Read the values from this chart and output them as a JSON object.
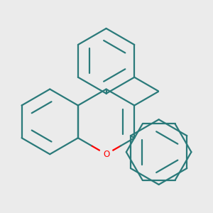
{
  "background_color": "#ebebeb",
  "bond_color": "#2a7a7a",
  "oxygen_color": "#ff0000",
  "line_width": 1.6,
  "figsize": [
    3.0,
    3.0
  ],
  "dpi": 100
}
